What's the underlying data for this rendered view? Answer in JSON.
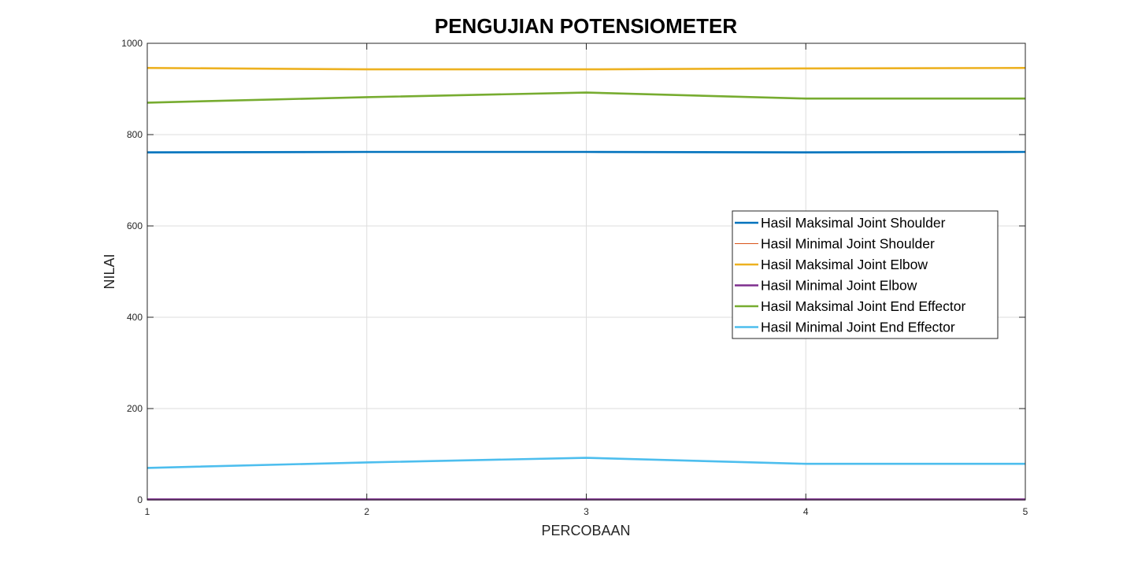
{
  "chart_data": {
    "type": "line",
    "title": "PENGUJIAN POTENSIOMETER",
    "xlabel": "PERCOBAAN",
    "ylabel": "NILAI",
    "x": [
      1,
      2,
      3,
      4,
      5
    ],
    "xlim": [
      1,
      5
    ],
    "ylim": [
      0,
      1000
    ],
    "xticks": [
      "1",
      "2",
      "3",
      "4",
      "5"
    ],
    "yticks": [
      "0",
      "200",
      "400",
      "600",
      "800",
      "1000"
    ],
    "grid": true,
    "legend_position": "right",
    "series": [
      {
        "name": "Hasil Maksimal Joint Shoulder",
        "color": "#0072BD",
        "values": [
          761,
          762,
          762,
          761,
          762
        ],
        "stroke": "thick"
      },
      {
        "name": "Hasil Minimal Joint Shoulder",
        "color": "#D95319",
        "values": [
          1,
          1,
          1,
          1,
          1
        ],
        "stroke": "thin"
      },
      {
        "name": "Hasil Maksimal Joint Elbow",
        "color": "#EDB120",
        "values": [
          946,
          943,
          943,
          945,
          946
        ],
        "stroke": "thick"
      },
      {
        "name": "Hasil Minimal Joint Elbow",
        "color": "#7E2F8E",
        "values": [
          1,
          1,
          1,
          1,
          1
        ],
        "stroke": "thick"
      },
      {
        "name": "Hasil Maksimal Joint End Effector",
        "color": "#77AC30",
        "values": [
          870,
          882,
          892,
          879,
          879
        ],
        "stroke": "thick"
      },
      {
        "name": "Hasil Minimal Joint End Effector",
        "color": "#4DBEEE",
        "values": [
          70,
          82,
          92,
          79,
          79
        ],
        "stroke": "thick"
      }
    ]
  }
}
